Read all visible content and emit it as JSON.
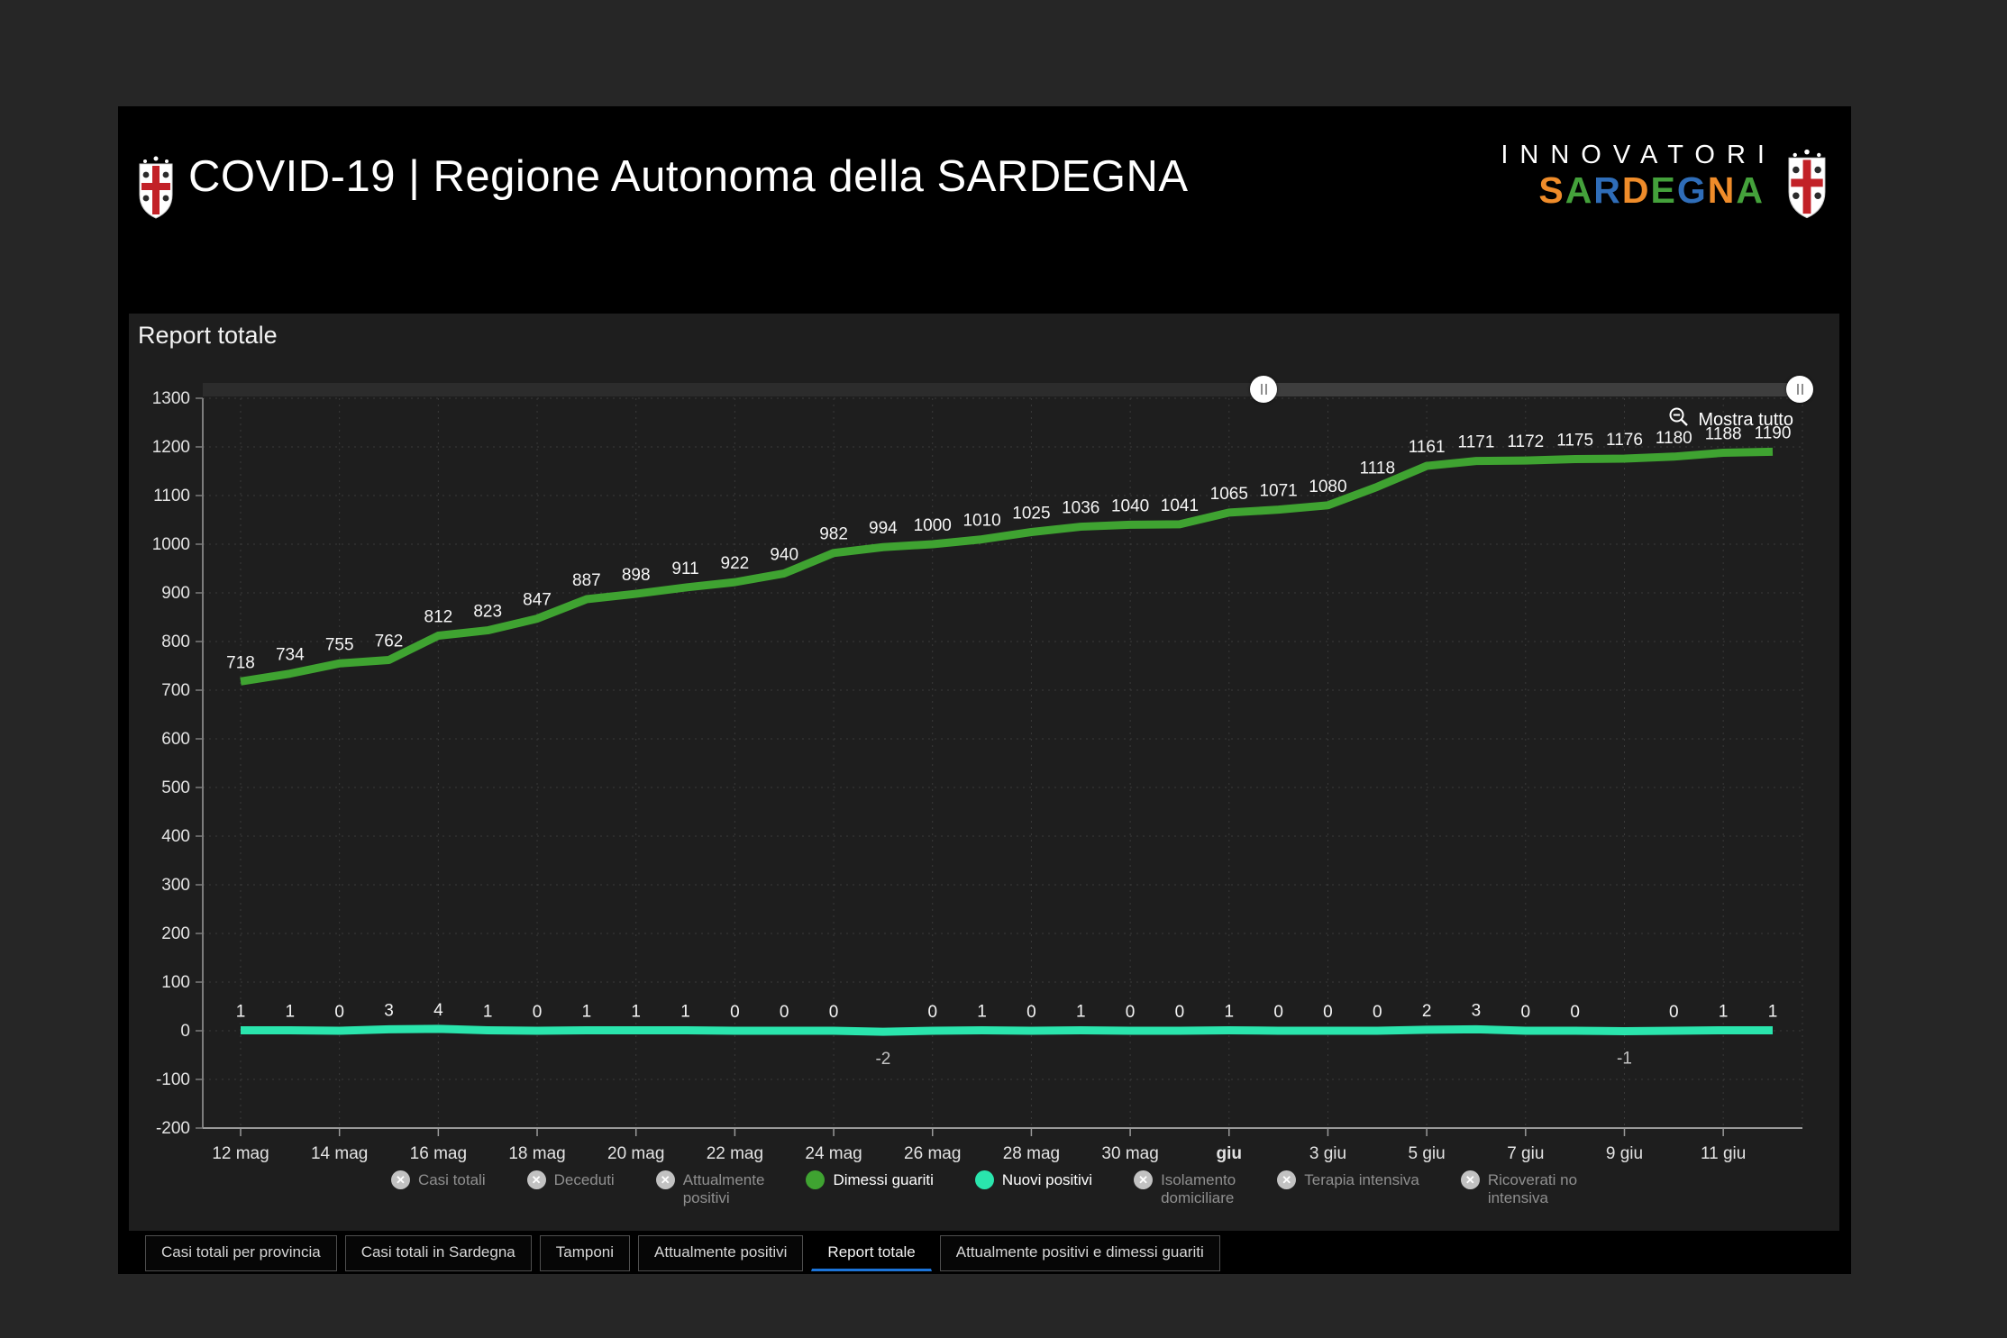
{
  "colors": {
    "accent_blue": "#1c74d8",
    "recovered_green": "#3fa331",
    "new_positive_cyan": "#2ae5ad",
    "disabled_gray": "#c2c2c2",
    "panel_bg": "#1e1e1e",
    "window_bg": "#000000"
  },
  "header": {
    "title": "COVID-19 | Regione Autonoma della SARDEGNA",
    "brand": {
      "line1": "INNOVATORI",
      "line2_letters": [
        {
          "ch": "S",
          "color": "#ef8c2a"
        },
        {
          "ch": "A",
          "color": "#44a13b"
        },
        {
          "ch": "R",
          "color": "#2f6db8"
        },
        {
          "ch": "D",
          "color": "#ef8c2a"
        },
        {
          "ch": "E",
          "color": "#44a13b"
        },
        {
          "ch": "G",
          "color": "#2f6db8"
        },
        {
          "ch": "N",
          "color": "#ef8c2a"
        },
        {
          "ch": "A",
          "color": "#44a13b"
        }
      ]
    }
  },
  "panel": {
    "title": "Report totale",
    "show_all": "Mostra tutto"
  },
  "chart_data": {
    "type": "line",
    "title": "Report totale",
    "categories": [
      "12 mag",
      "13 mag",
      "14 mag",
      "15 mag",
      "16 mag",
      "17 mag",
      "18 mag",
      "19 mag",
      "20 mag",
      "21 mag",
      "22 mag",
      "23 mag",
      "24 mag",
      "25 mag",
      "26 mag",
      "27 mag",
      "28 mag",
      "29 mag",
      "30 mag",
      "31 mag",
      "1 giu",
      "2 giu",
      "3 giu",
      "4 giu",
      "5 giu",
      "6 giu",
      "7 giu",
      "8 giu",
      "9 giu",
      "10 giu",
      "11 giu",
      "12 giu"
    ],
    "xticks": [
      {
        "label": "12 mag"
      },
      {
        "label": "14 mag"
      },
      {
        "label": "16 mag"
      },
      {
        "label": "18 mag"
      },
      {
        "label": "20 mag"
      },
      {
        "label": "22 mag"
      },
      {
        "label": "24 mag"
      },
      {
        "label": "26 mag"
      },
      {
        "label": "28 mag"
      },
      {
        "label": "30 mag"
      },
      {
        "label": "giu",
        "bold": true
      },
      {
        "label": "3 giu"
      },
      {
        "label": "5 giu"
      },
      {
        "label": "7 giu"
      },
      {
        "label": "9 giu"
      },
      {
        "label": "11 giu"
      }
    ],
    "ylim": [
      -200,
      1300
    ],
    "ytick_step": 100,
    "grid": true,
    "legend_position": "bottom",
    "series": [
      {
        "name": "Dimessi guariti",
        "color": "#3fa331",
        "values": [
          718,
          734,
          755,
          762,
          812,
          823,
          847,
          887,
          898,
          911,
          922,
          940,
          982,
          994,
          1000,
          1010,
          1025,
          1036,
          1040,
          1041,
          1065,
          1071,
          1080,
          1118,
          1161,
          1171,
          1172,
          1175,
          1176,
          1180,
          1188,
          1190
        ]
      },
      {
        "name": "Nuovi positivi",
        "color": "#2ae5ad",
        "values": [
          1,
          1,
          0,
          3,
          4,
          1,
          0,
          1,
          1,
          1,
          0,
          0,
          0,
          -2,
          0,
          1,
          0,
          1,
          0,
          0,
          1,
          0,
          0,
          0,
          2,
          3,
          0,
          0,
          -1,
          0,
          1,
          1
        ]
      }
    ]
  },
  "legend": {
    "items": [
      {
        "lines": [
          "Casi totali"
        ],
        "disabled": true
      },
      {
        "lines": [
          "Deceduti"
        ],
        "disabled": true
      },
      {
        "lines": [
          "Attualmente",
          "positivi"
        ],
        "disabled": true
      },
      {
        "lines": [
          "Dimessi guariti"
        ],
        "disabled": false,
        "color": "#3fa331"
      },
      {
        "lines": [
          "Nuovi positivi"
        ],
        "disabled": false,
        "color": "#2ae5ad"
      },
      {
        "lines": [
          "Isolamento",
          "domiciliare"
        ],
        "disabled": true
      },
      {
        "lines": [
          "Terapia intensiva"
        ],
        "disabled": true
      },
      {
        "lines": [
          "Ricoverati no",
          "intensiva"
        ],
        "disabled": true
      }
    ]
  },
  "tabs": {
    "items": [
      {
        "label": "Casi totali per provincia",
        "active": false
      },
      {
        "label": "Casi totali in Sardegna",
        "active": false
      },
      {
        "label": "Tamponi",
        "active": false
      },
      {
        "label": "Attualmente positivi",
        "active": false
      },
      {
        "label": "Report totale",
        "active": true
      },
      {
        "label": "Attualmente positivi e dimessi guariti",
        "active": false
      }
    ]
  }
}
